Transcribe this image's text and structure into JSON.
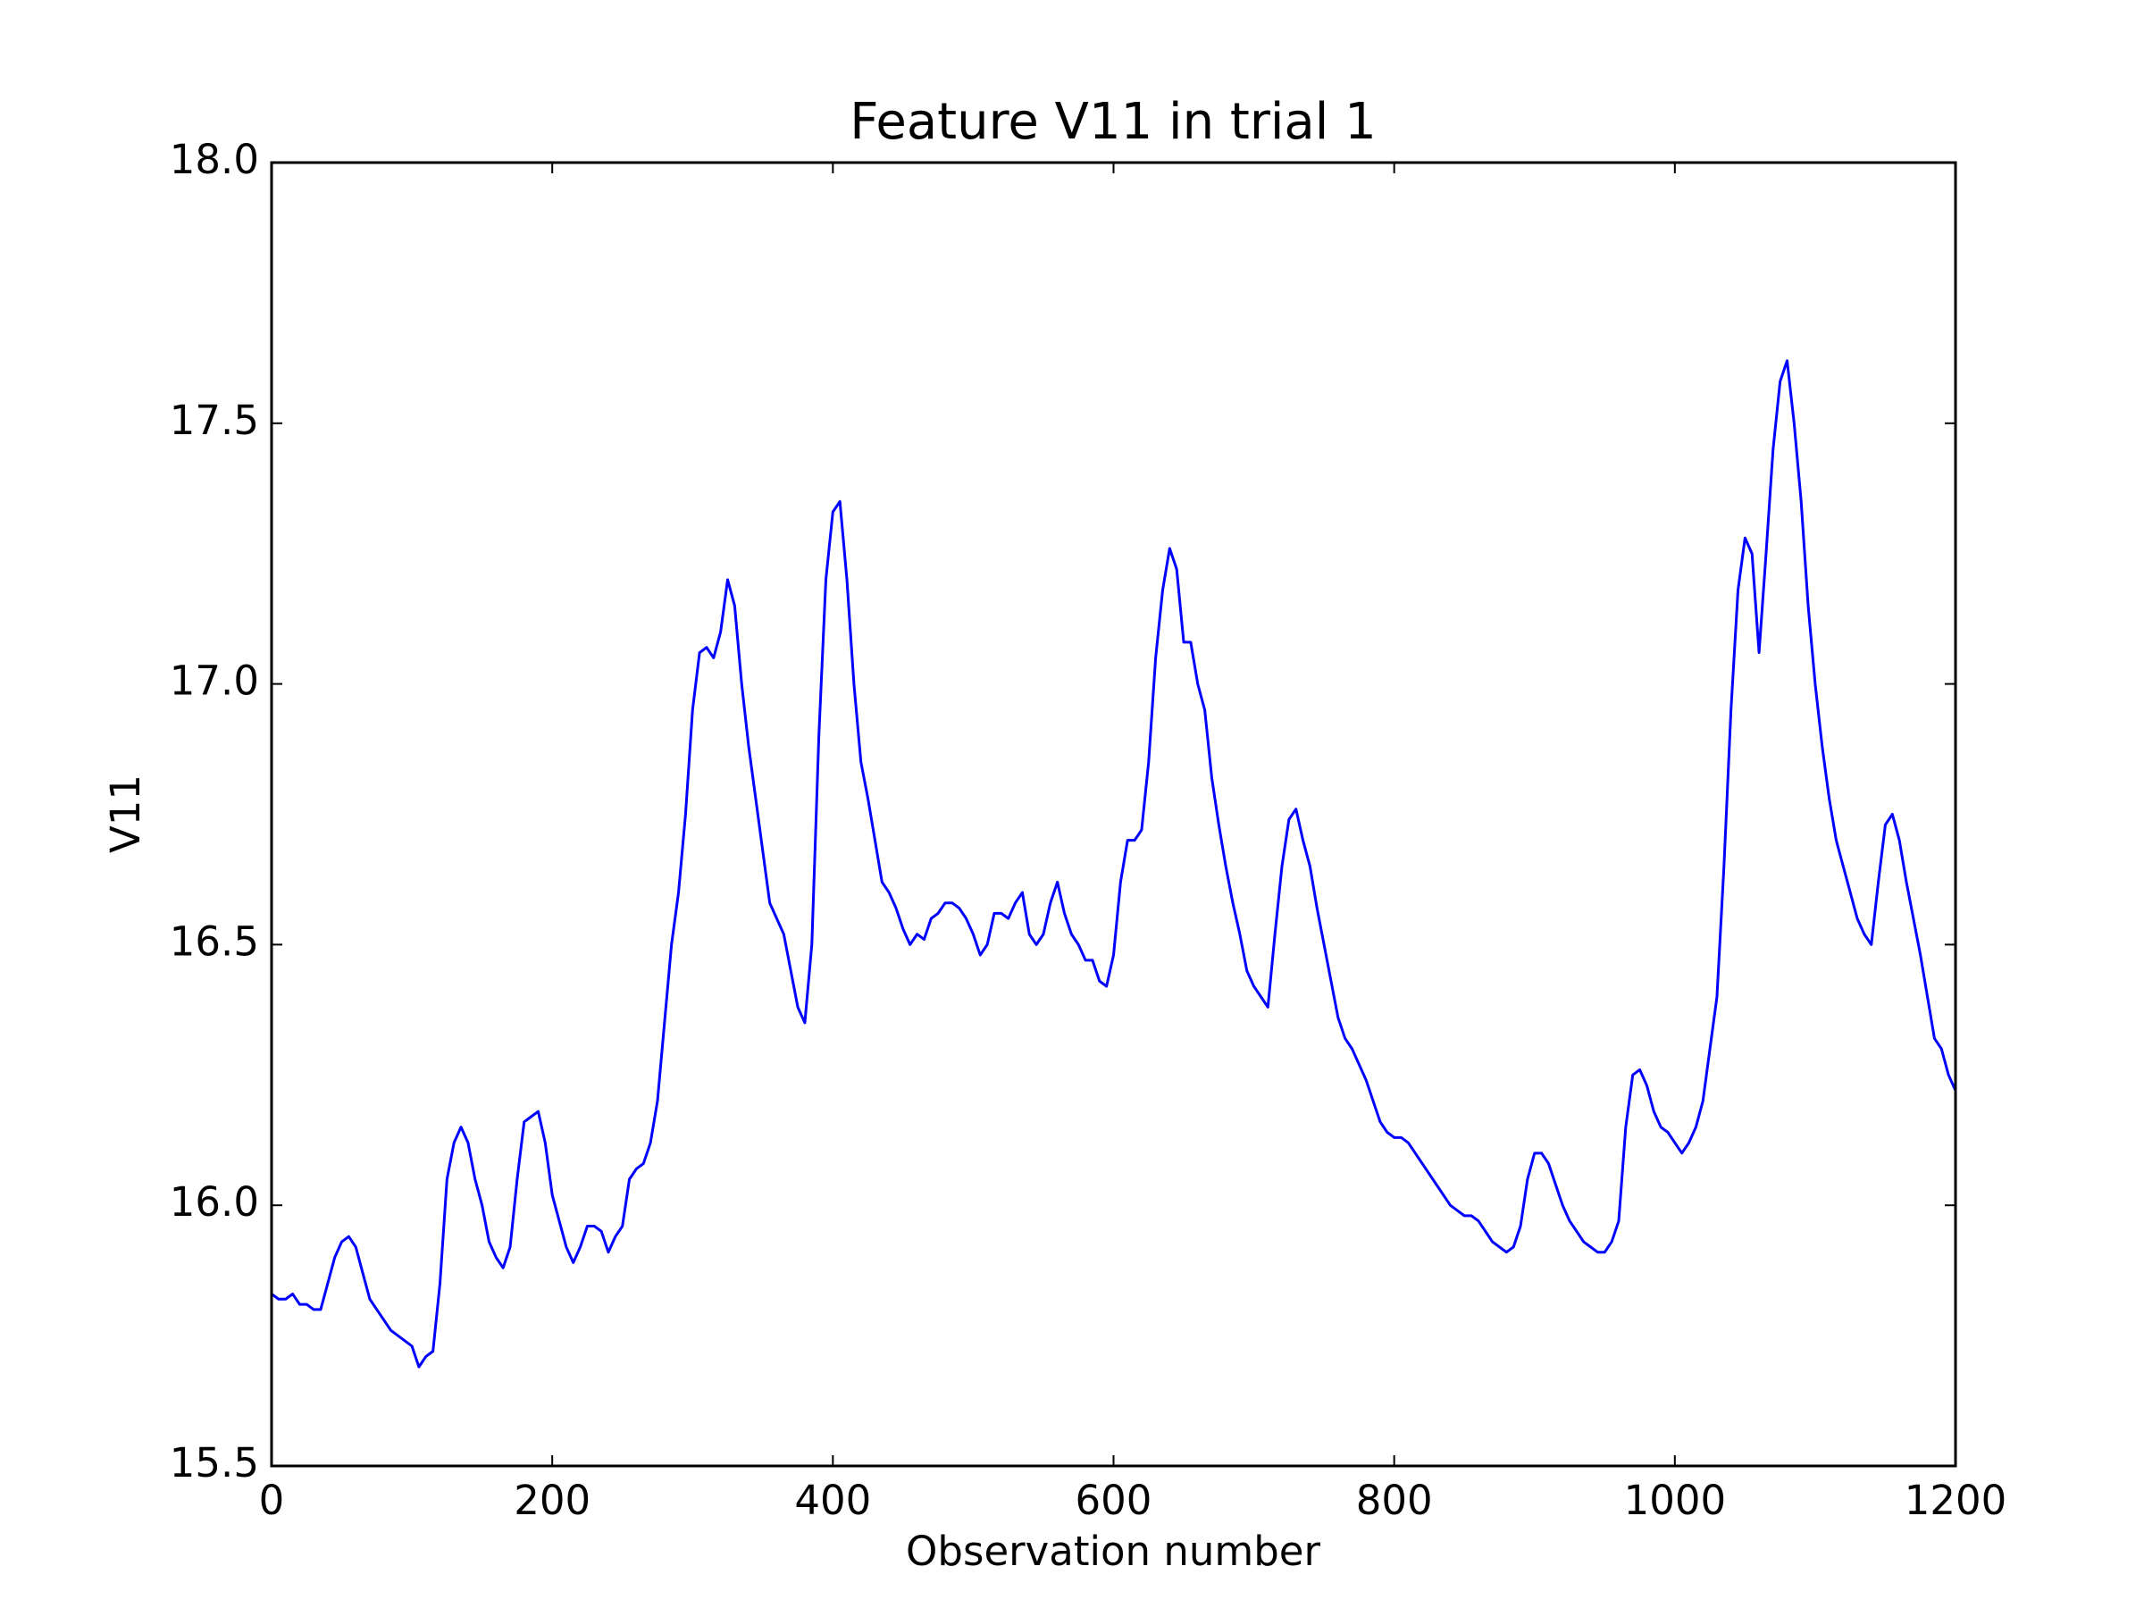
{
  "chart_data": {
    "type": "line",
    "title": "Feature V11 in trial 1",
    "xlabel": "Observation number",
    "ylabel": "V11",
    "color": "#0000ff",
    "x": [
      0,
      5,
      10,
      15,
      20,
      25,
      30,
      35,
      40,
      45,
      50,
      55,
      60,
      65,
      70,
      75,
      80,
      85,
      90,
      95,
      100,
      105,
      110,
      115,
      120,
      125,
      130,
      135,
      140,
      145,
      150,
      155,
      160,
      165,
      170,
      175,
      180,
      185,
      190,
      195,
      200,
      205,
      210,
      215,
      220,
      225,
      230,
      235,
      240,
      245,
      250,
      255,
      260,
      265,
      270,
      275,
      280,
      285,
      290,
      295,
      300,
      305,
      310,
      315,
      320,
      325,
      330,
      335,
      340,
      345,
      350,
      355,
      360,
      365,
      370,
      375,
      380,
      385,
      390,
      395,
      400,
      405,
      410,
      415,
      420,
      425,
      430,
      435,
      440,
      445,
      450,
      455,
      460,
      465,
      470,
      475,
      480,
      485,
      490,
      495,
      500,
      505,
      510,
      515,
      520,
      525,
      530,
      535,
      540,
      545,
      550,
      555,
      560,
      565,
      570,
      575,
      580,
      585,
      590,
      595,
      600,
      605,
      610,
      615,
      620,
      625,
      630,
      635,
      640,
      645,
      650,
      655,
      660,
      665,
      670,
      675,
      680,
      685,
      690,
      695,
      700,
      705,
      710,
      715,
      720,
      725,
      730,
      735,
      740,
      745,
      750,
      755,
      760,
      765,
      770,
      775,
      780,
      785,
      790,
      795,
      800,
      805,
      810,
      815,
      820,
      825,
      830,
      835,
      840,
      845,
      850,
      855,
      860,
      865,
      870,
      875,
      880,
      885,
      890,
      895,
      900,
      905,
      910,
      915,
      920,
      925,
      930,
      935,
      940,
      945,
      950,
      955,
      960,
      965,
      970,
      975,
      980,
      985,
      990,
      995,
      1000,
      1005,
      1010,
      1015,
      1020,
      1025,
      1030,
      1035,
      1040,
      1045,
      1050,
      1055,
      1060,
      1065,
      1070,
      1075,
      1080,
      1085,
      1090,
      1095,
      1100,
      1105,
      1110,
      1115,
      1120,
      1125,
      1130,
      1135,
      1140,
      1145,
      1150,
      1155,
      1160,
      1165,
      1170,
      1175,
      1180,
      1185,
      1190,
      1195,
      1200
    ],
    "values": [
      15.83,
      15.82,
      15.82,
      15.83,
      15.81,
      15.81,
      15.8,
      15.8,
      15.85,
      15.9,
      15.93,
      15.94,
      15.92,
      15.87,
      15.82,
      15.8,
      15.78,
      15.76,
      15.75,
      15.74,
      15.73,
      15.69,
      15.71,
      15.72,
      15.85,
      16.05,
      16.12,
      16.15,
      16.12,
      16.05,
      16.0,
      15.93,
      15.9,
      15.88,
      15.92,
      16.05,
      16.16,
      16.17,
      16.18,
      16.12,
      16.02,
      15.97,
      15.92,
      15.89,
      15.92,
      15.96,
      15.96,
      15.95,
      15.91,
      15.94,
      15.96,
      16.05,
      16.07,
      16.08,
      16.12,
      16.2,
      16.35,
      16.5,
      16.6,
      16.75,
      16.95,
      17.06,
      17.07,
      17.05,
      17.1,
      17.2,
      17.15,
      17.0,
      16.88,
      16.78,
      16.68,
      16.58,
      16.55,
      16.52,
      16.45,
      16.38,
      16.35,
      16.5,
      16.9,
      17.2,
      17.33,
      17.35,
      17.2,
      17.0,
      16.85,
      16.78,
      16.7,
      16.62,
      16.6,
      16.57,
      16.53,
      16.5,
      16.52,
      16.51,
      16.55,
      16.56,
      16.58,
      16.58,
      16.57,
      16.55,
      16.52,
      16.48,
      16.5,
      16.56,
      16.56,
      16.55,
      16.58,
      16.6,
      16.52,
      16.5,
      16.52,
      16.58,
      16.62,
      16.56,
      16.52,
      16.5,
      16.47,
      16.47,
      16.43,
      16.42,
      16.48,
      16.62,
      16.7,
      16.7,
      16.72,
      16.85,
      17.05,
      17.18,
      17.26,
      17.22,
      17.08,
      17.08,
      17.0,
      16.95,
      16.82,
      16.73,
      16.65,
      16.58,
      16.52,
      16.45,
      16.42,
      16.4,
      16.38,
      16.52,
      16.65,
      16.74,
      16.76,
      16.7,
      16.65,
      16.57,
      16.5,
      16.43,
      16.36,
      16.32,
      16.3,
      16.27,
      16.24,
      16.2,
      16.16,
      16.14,
      16.13,
      16.13,
      16.12,
      16.1,
      16.08,
      16.06,
      16.04,
      16.02,
      16.0,
      15.99,
      15.98,
      15.98,
      15.97,
      15.95,
      15.93,
      15.92,
      15.91,
      15.92,
      15.96,
      16.05,
      16.1,
      16.1,
      16.08,
      16.04,
      16.0,
      15.97,
      15.95,
      15.93,
      15.92,
      15.91,
      15.91,
      15.93,
      15.97,
      16.15,
      16.25,
      16.26,
      16.23,
      16.18,
      16.15,
      16.14,
      16.12,
      16.1,
      16.12,
      16.15,
      16.2,
      16.3,
      16.4,
      16.65,
      16.95,
      17.18,
      17.28,
      17.25,
      17.06,
      17.25,
      17.45,
      17.58,
      17.62,
      17.5,
      17.35,
      17.15,
      17.0,
      16.88,
      16.78,
      16.7,
      16.65,
      16.6,
      16.55,
      16.52,
      16.5,
      16.62,
      16.73,
      16.75,
      16.7,
      16.62,
      16.55,
      16.48,
      16.4,
      16.32,
      16.3,
      16.25,
      16.22
    ],
    "xlim": [
      0,
      1200
    ],
    "xticks": [
      0,
      200,
      400,
      600,
      800,
      1000,
      1200
    ],
    "ylim": [
      15.5,
      18.0
    ],
    "yticks": [
      15.5,
      {
        "value": 16.0,
        "label": "16.0"
      },
      16.5,
      {
        "value": 17.0,
        "label": "17.0"
      },
      17.5,
      {
        "value": 18.0,
        "label": "18.0"
      }
    ]
  }
}
